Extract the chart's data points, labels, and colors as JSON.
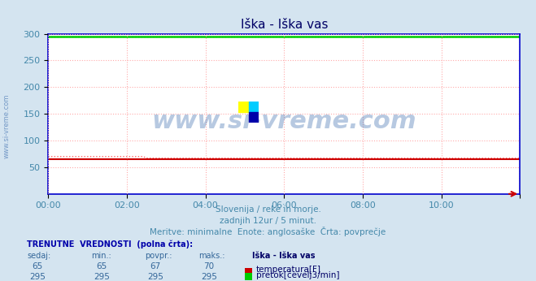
{
  "title": "Iška - Iška vas",
  "background_color": "#d4e4f0",
  "plot_bg_color": "#ffffff",
  "grid_color": "#ffaaaa",
  "xlabel_color": "#4488aa",
  "ylabel_color": "#4488aa",
  "title_color": "#000066",
  "watermark_text": "www.si-vreme.com",
  "watermark_color": "#3366aa",
  "watermark_alpha": 0.35,
  "subtitle_lines": [
    "Slovenija / reke in morje.",
    "zadnjih 12ur / 5 minut.",
    "Meritve: minimalne  Enote: anglosaške  Črta: povprečje"
  ],
  "subtitle_color": "#4488aa",
  "xmin": 0,
  "xmax": 144,
  "ymin": 0,
  "ymax": 300,
  "xtick_positions": [
    0,
    24,
    48,
    72,
    96,
    120,
    144
  ],
  "xtick_labels": [
    "00:00",
    "02:00",
    "04:00",
    "06:00",
    "08:00",
    "10:00",
    ""
  ],
  "temperature_value": 65,
  "temperature_min": 65,
  "temperature_avg": 67,
  "temperature_max": 70,
  "flow_value": 295,
  "flow_min": 295,
  "flow_avg": 295,
  "flow_max": 295,
  "temp_color": "#cc0000",
  "flow_color": "#00cc00",
  "temp_dotted_color": "#ff6666",
  "flow_dotted_color": "#00ff00",
  "border_color": "#0000cc",
  "table_header_color": "#0000aa",
  "table_value_color": "#336699",
  "table_label_color": "#000066",
  "sidebar_text": "www.si-vreme.com",
  "sidebar_color": "#3366aa",
  "logo_colors": [
    "#ffff00",
    "#00ccff",
    "#0000aa"
  ]
}
